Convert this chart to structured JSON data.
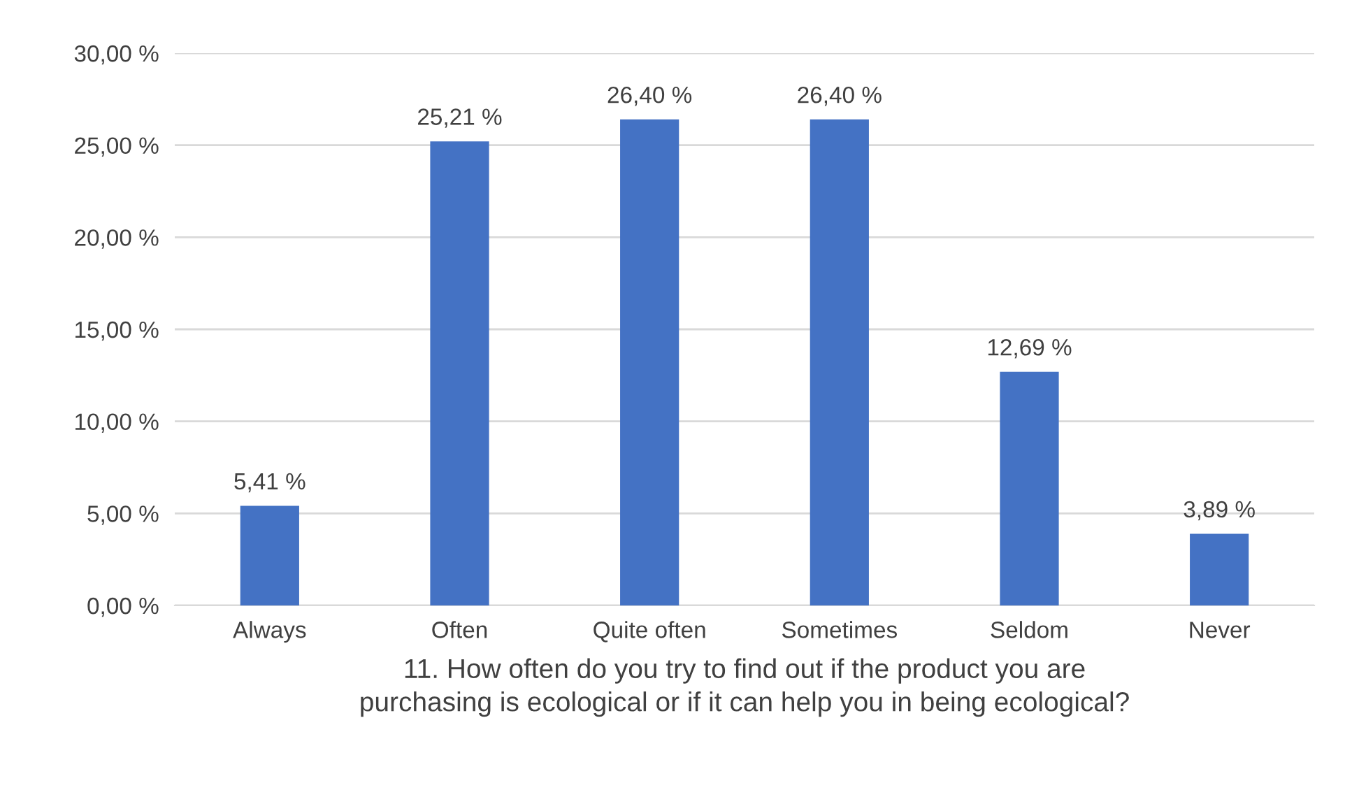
{
  "chart_data": {
    "type": "bar",
    "categories": [
      "Always",
      "Often",
      "Quite often",
      "Sometimes",
      "Seldom",
      "Never"
    ],
    "values": [
      5.41,
      25.21,
      26.4,
      26.4,
      12.69,
      3.89
    ],
    "value_labels": [
      "5,41 %",
      "25,21 %",
      "26,40 %",
      "26,40 %",
      "12,69 %",
      "3,89 %"
    ],
    "color": "#4472c4",
    "xlabel": "11. How often do you try to find out if the product you are\npurchasing is ecological or if it can help you in being ecological?",
    "ylim": [
      0,
      30
    ],
    "yticks": [
      {
        "value": 0,
        "label": "0,00 %"
      },
      {
        "value": 5,
        "label": "5,00 %"
      },
      {
        "value": 10,
        "label": "10,00 %"
      },
      {
        "value": 15,
        "label": "15,00 %"
      },
      {
        "value": 20,
        "label": "20,00 %"
      },
      {
        "value": 25,
        "label": "25,00 %"
      },
      {
        "value": 30,
        "label": "30,00 %"
      }
    ],
    "grid": "y"
  }
}
